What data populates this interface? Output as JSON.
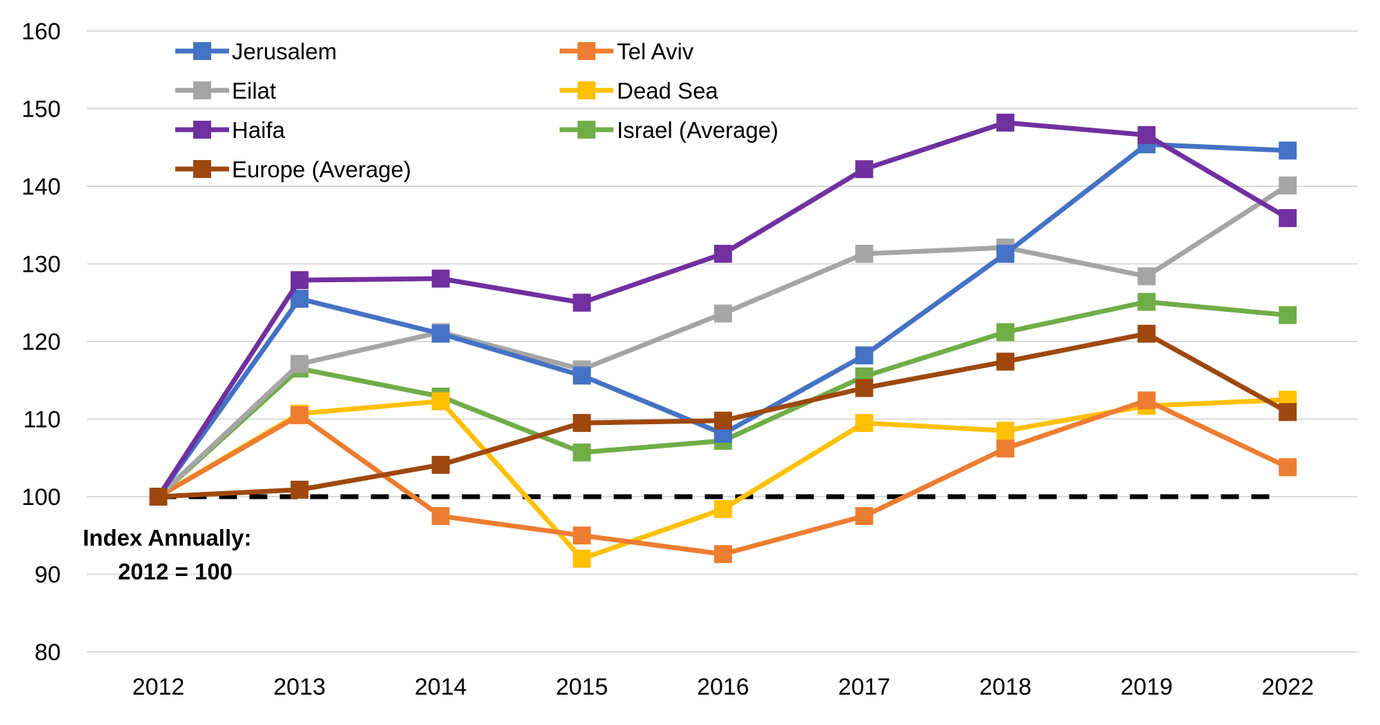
{
  "chart_data": {
    "type": "line",
    "title": "",
    "xlabel": "",
    "ylabel": "",
    "categories": [
      "2012",
      "2013",
      "2014",
      "2015",
      "2016",
      "2017",
      "2018",
      "2019",
      "2022"
    ],
    "ylim": [
      80,
      160
    ],
    "yticks": [
      80,
      90,
      100,
      110,
      120,
      130,
      140,
      150,
      160
    ],
    "grid": true,
    "legend_placement": "top-left",
    "annotation": [
      "Index Annually:",
      "2012 = 100"
    ],
    "reference_line": {
      "value": 100,
      "style": "dashed",
      "color": "#000000"
    },
    "series": [
      {
        "name": "Jerusalem",
        "color": "#4472C4",
        "values": [
          100,
          125.5,
          121.0,
          115.6,
          108.1,
          118.2,
          131.3,
          145.4,
          144.6
        ]
      },
      {
        "name": "Tel Aviv",
        "color": "#ED7D31",
        "values": [
          100,
          110.5,
          97.5,
          95.0,
          92.6,
          97.5,
          106.2,
          112.4,
          103.8
        ]
      },
      {
        "name": "Eilat",
        "color": "#A5A5A5",
        "values": [
          100,
          117.1,
          121.2,
          116.4,
          123.6,
          131.3,
          132.1,
          128.4,
          140.1
        ]
      },
      {
        "name": "Dead Sea",
        "color": "#FFC000",
        "values": [
          100,
          110.7,
          112.3,
          92.0,
          98.4,
          109.5,
          108.5,
          111.7,
          112.5
        ]
      },
      {
        "name": "Haifa",
        "color": "#7030A0",
        "values": [
          100,
          127.9,
          128.1,
          125.0,
          131.3,
          142.2,
          148.2,
          146.6,
          135.9
        ]
      },
      {
        "name": "Israel (Average)",
        "color": "#70AD47",
        "values": [
          100,
          116.5,
          112.9,
          105.7,
          107.2,
          115.5,
          121.2,
          125.1,
          123.4
        ]
      },
      {
        "name": "Europe (Average)",
        "color": "#9E480E",
        "values": [
          100,
          100.9,
          104.1,
          109.5,
          109.8,
          114.0,
          117.4,
          121.0,
          110.9
        ]
      }
    ]
  }
}
